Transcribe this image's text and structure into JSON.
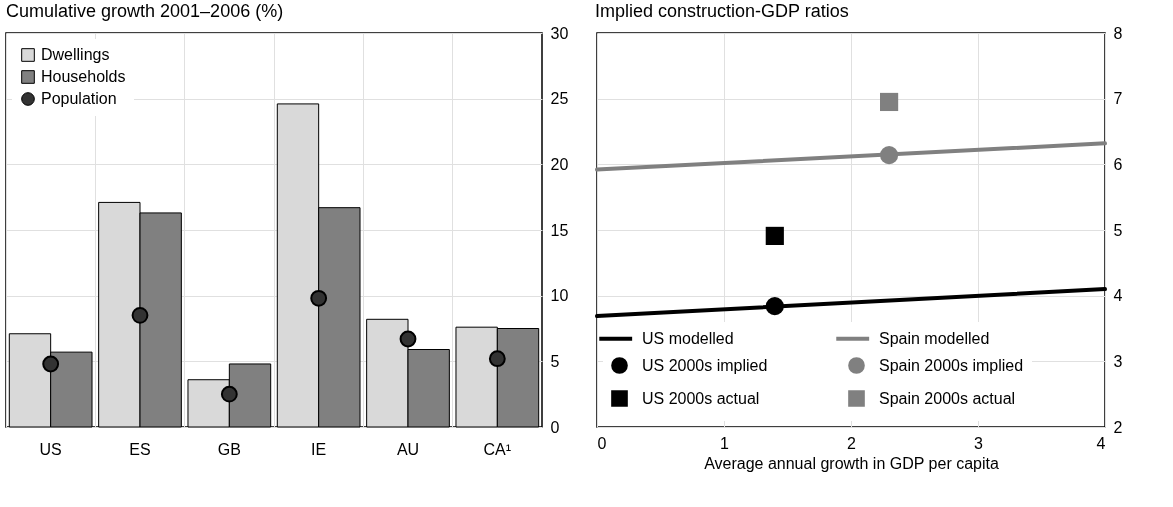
{
  "chart_data": [
    {
      "type": "bar",
      "title": "Cumulative growth 2001–2006 (%)",
      "categories": [
        "US",
        "ES",
        "GB",
        "IE",
        "AU",
        "CA¹"
      ],
      "series": [
        {
          "name": "Dwellings",
          "color": "#d9d9d9",
          "values": [
            7.1,
            17.1,
            3.6,
            24.6,
            8.2,
            7.6
          ]
        },
        {
          "name": "Households",
          "color": "#808080",
          "values": [
            5.7,
            16.3,
            4.8,
            16.7,
            5.9,
            7.5
          ]
        },
        {
          "name": "Population",
          "type": "scatter",
          "marker": "circle",
          "color": "#333333",
          "values": [
            4.8,
            8.5,
            2.5,
            9.8,
            6.7,
            5.2
          ]
        }
      ],
      "ylim": [
        0,
        30
      ],
      "yticks": [
        0,
        5,
        10,
        15,
        20,
        25,
        30
      ],
      "grid": true,
      "legend": "top left"
    },
    {
      "type": "line",
      "title": "Implied construction-GDP ratios",
      "xlabel": "Average annual growth in GDP per capita",
      "series": [
        {
          "name": "US modelled",
          "color": "#000000",
          "x": [
            0,
            4
          ],
          "values": [
            3.69,
            4.1
          ]
        },
        {
          "name": "Spain modelled",
          "color": "#808080",
          "x": [
            0,
            4
          ],
          "values": [
            5.92,
            6.32
          ]
        },
        {
          "name": "US 2000s implied",
          "type": "scatter",
          "marker": "circle",
          "color": "#000000",
          "x": [
            1.4
          ],
          "values": [
            3.84
          ]
        },
        {
          "name": "Spain 2000s implied",
          "type": "scatter",
          "marker": "circle",
          "color": "#808080",
          "x": [
            2.3
          ],
          "values": [
            6.14
          ]
        },
        {
          "name": "US 2000s actual",
          "type": "scatter",
          "marker": "square",
          "color": "#000000",
          "x": [
            1.4
          ],
          "values": [
            4.91
          ]
        },
        {
          "name": "Spain 2000s actual",
          "type": "scatter",
          "marker": "square",
          "color": "#808080",
          "x": [
            2.3
          ],
          "values": [
            6.95
          ]
        }
      ],
      "xlim": [
        0,
        4
      ],
      "xticks": [
        0,
        1,
        2,
        3,
        4
      ],
      "ylim": [
        2,
        8
      ],
      "yticks": [
        2,
        3,
        4,
        5,
        6,
        7,
        8
      ],
      "grid": true,
      "legend": "bottom"
    }
  ]
}
